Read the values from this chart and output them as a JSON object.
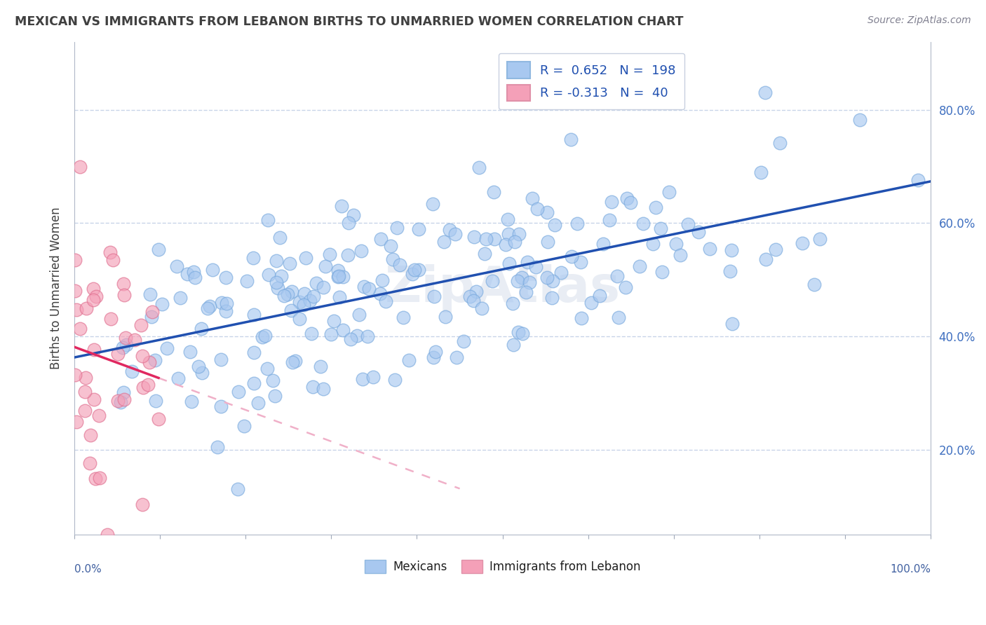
{
  "title": "MEXICAN VS IMMIGRANTS FROM LEBANON BIRTHS TO UNMARRIED WOMEN CORRELATION CHART",
  "source": "Source: ZipAtlas.com",
  "ylabel": "Births to Unmarried Women",
  "ytick_values": [
    0.2,
    0.4,
    0.6,
    0.8
  ],
  "ytick_labels": [
    "20.0%",
    "40.0%",
    "60.0%",
    "80.0%"
  ],
  "blue_scatter_color": "#a8c8f0",
  "blue_scatter_edge": "#7aaade",
  "pink_scatter_color": "#f4a0b8",
  "pink_scatter_edge": "#e07090",
  "blue_line_color": "#2050b0",
  "pink_line_solid_color": "#e02860",
  "pink_line_dash_color": "#f0b0c8",
  "background_color": "#ffffff",
  "grid_color": "#c8d4e8",
  "legend_blue_color": "#a8c8f0",
  "legend_pink_color": "#f4a0b8",
  "legend_text_color": "#2050b0",
  "R_blue": 0.652,
  "N_blue": 198,
  "R_pink": -0.313,
  "N_pink": 40,
  "xlim": [
    0.0,
    1.0
  ],
  "ylim": [
    0.05,
    0.92
  ],
  "seed_blue": 42,
  "seed_pink": 7
}
